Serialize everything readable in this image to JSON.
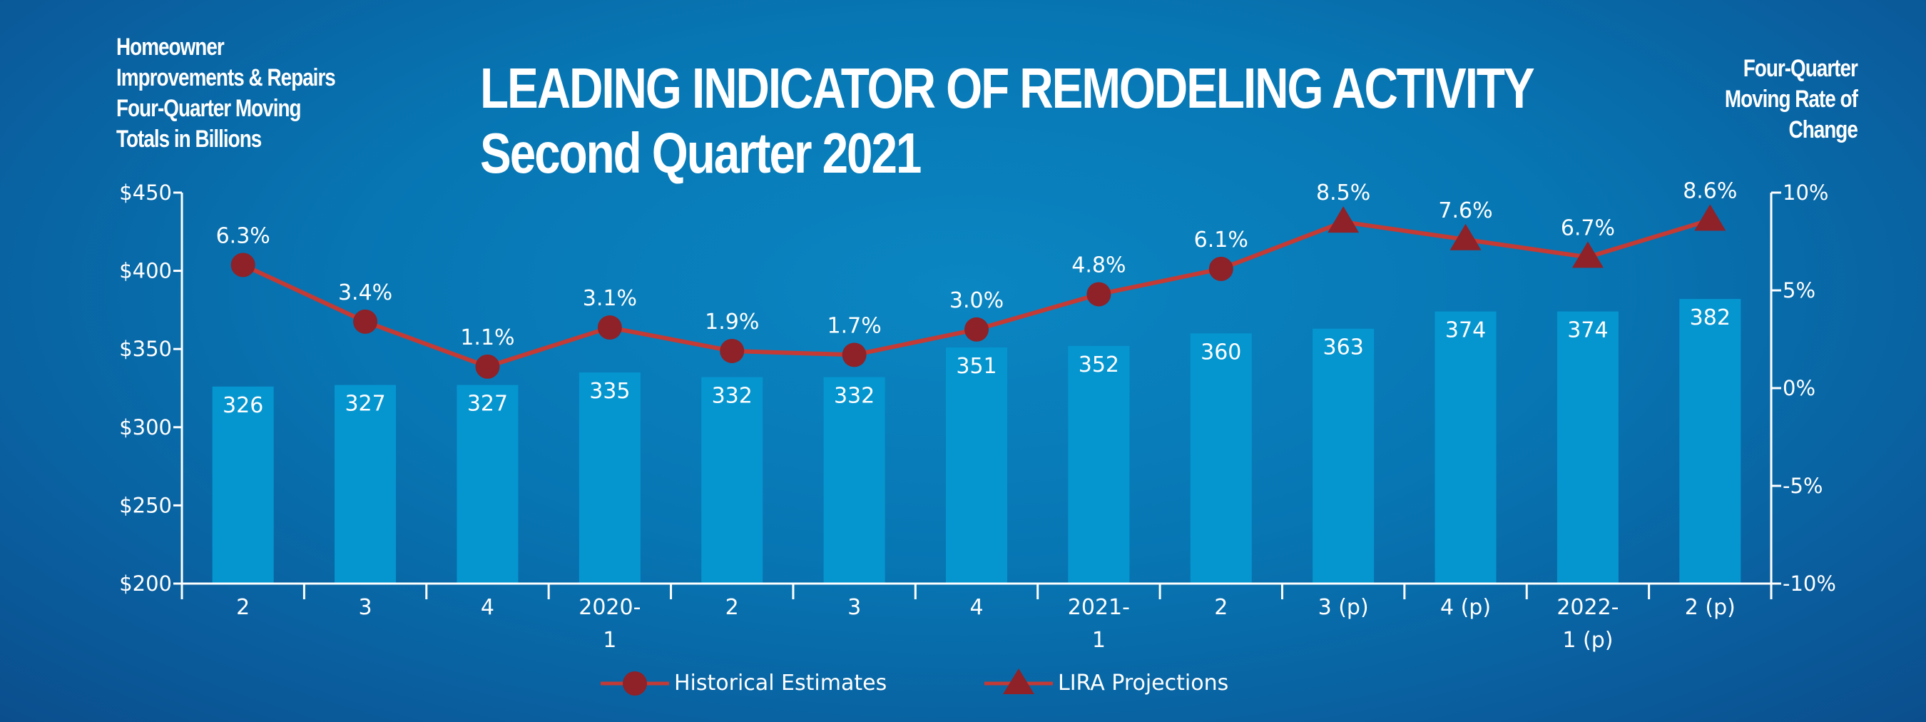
{
  "chart_data": {
    "type": "bar+line",
    "title": [
      "LEADING INDICATOR OF REMODELING ACTIVITY",
      "Second Quarter 2021"
    ],
    "left_axis_title": [
      "Homeowner",
      "Improvements & Repairs",
      "Four-Quarter Moving",
      "Totals in Billions"
    ],
    "right_axis_title": [
      "Four-Quarter",
      "Moving Rate of",
      "Change"
    ],
    "categories": [
      [
        "2"
      ],
      [
        "3"
      ],
      [
        "4"
      ],
      [
        "2020-",
        "1"
      ],
      [
        "2"
      ],
      [
        "3"
      ],
      [
        "4"
      ],
      [
        "2021-",
        "1"
      ],
      [
        "2"
      ],
      [
        "3 (p)"
      ],
      [
        "4 (p)"
      ],
      [
        "2022-",
        "1 (p)"
      ],
      [
        "2 (p)"
      ]
    ],
    "bars": {
      "name": "",
      "color": "#0596d0",
      "values": [
        326,
        327,
        327,
        335,
        332,
        332,
        351,
        352,
        360,
        363,
        374,
        374,
        382
      ],
      "labels": [
        "326",
        "327",
        "327",
        "335",
        "332",
        "332",
        "351",
        "352",
        "360",
        "363",
        "374",
        "374",
        "382"
      ]
    },
    "line": {
      "color": "#c43a35",
      "marker_color": "#8f2128",
      "values": [
        6.3,
        3.4,
        1.1,
        3.1,
        1.9,
        1.7,
        3.0,
        4.8,
        6.1,
        8.5,
        7.6,
        6.7,
        8.6
      ],
      "labels": [
        "6.3%",
        "3.4%",
        "1.1%",
        "3.1%",
        "1.9%",
        "1.7%",
        "3.0%",
        "4.8%",
        "6.1%",
        "8.5%",
        "7.6%",
        "6.7%",
        "8.6%"
      ],
      "markers": [
        "circle",
        "circle",
        "circle",
        "circle",
        "circle",
        "circle",
        "circle",
        "circle",
        "circle",
        "triangle",
        "triangle",
        "triangle",
        "triangle"
      ]
    },
    "left_axis": {
      "min": 200,
      "max": 450,
      "ticks": [
        200,
        250,
        300,
        350,
        400,
        450
      ],
      "tick_labels": [
        "$200",
        "$250",
        "$300",
        "$350",
        "$400",
        "$450"
      ]
    },
    "right_axis": {
      "min": -10,
      "max": 10,
      "ticks": [
        -10,
        -5,
        0,
        5,
        10
      ],
      "tick_labels": [
        "-10%",
        "-5%",
        "0%",
        "5%",
        "10%"
      ]
    },
    "legend": [
      {
        "label": "Historical Estimates",
        "marker": "circle"
      },
      {
        "label": "LIRA Projections",
        "marker": "triangle"
      }
    ],
    "legend_position": "bottom",
    "grid": false
  }
}
